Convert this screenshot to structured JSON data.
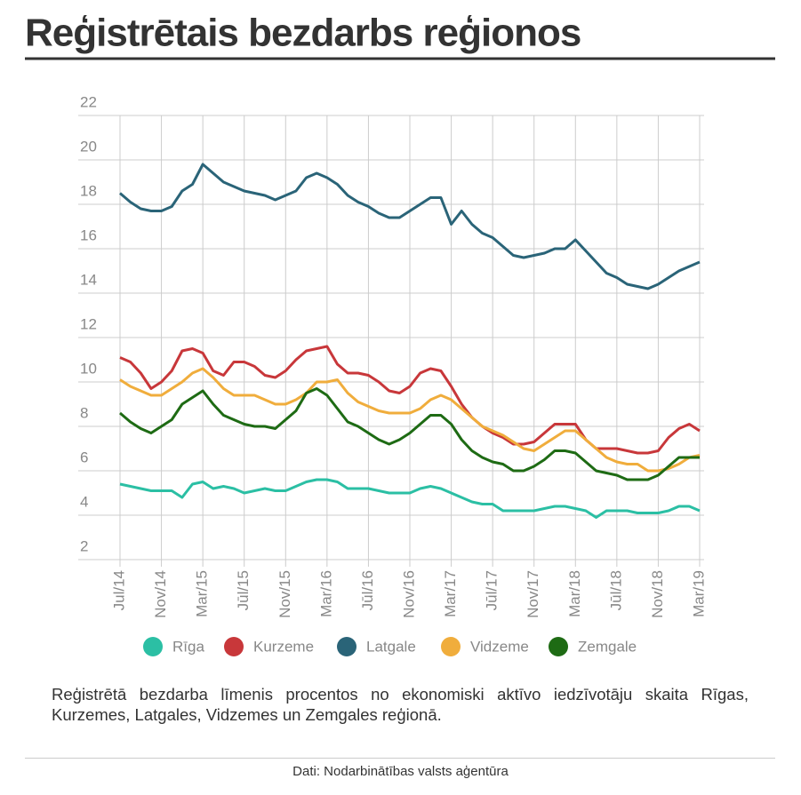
{
  "chart_data": {
    "type": "line",
    "title": "Reģistrētais bezdarbs reģionos",
    "categories": [
      "Jul/14",
      null,
      null,
      null,
      "Nov/14",
      null,
      null,
      null,
      "Mar/15",
      null,
      null,
      null,
      "Jūl/15",
      null,
      null,
      null,
      "Nov/15",
      null,
      null,
      null,
      "Mar/16",
      null,
      null,
      null,
      "Jūl/16",
      null,
      null,
      null,
      "Nov/16",
      null,
      null,
      null,
      "Mar/17",
      null,
      null,
      null,
      "Jūl/17",
      null,
      null,
      null,
      "Nov/17",
      null,
      null,
      null,
      "Mar/18",
      null,
      null,
      null,
      "Jūl/18",
      null,
      null,
      null,
      "Nov/18",
      null,
      null,
      null,
      "Mar/19"
    ],
    "ylim": [
      2,
      22
    ],
    "yticks": [
      2,
      4,
      6,
      8,
      10,
      12,
      14,
      16,
      18,
      20,
      22
    ],
    "grid": true,
    "series": [
      {
        "name": "Rīga",
        "color": "#2bbfa4",
        "values": [
          5.4,
          5.3,
          5.2,
          5.1,
          5.1,
          5.1,
          4.8,
          5.4,
          5.5,
          5.2,
          5.3,
          5.2,
          5.0,
          5.1,
          5.2,
          5.1,
          5.1,
          5.3,
          5.5,
          5.6,
          5.6,
          5.5,
          5.2,
          5.2,
          5.2,
          5.1,
          5.0,
          5.0,
          5.0,
          5.2,
          5.3,
          5.2,
          5.0,
          4.8,
          4.6,
          4.5,
          4.5,
          4.2,
          4.2,
          4.2,
          4.2,
          4.3,
          4.4,
          4.4,
          4.3,
          4.2,
          3.9,
          4.2,
          4.2,
          4.2,
          4.1,
          4.1,
          4.1,
          4.2,
          4.4,
          4.4,
          4.2
        ]
      },
      {
        "name": "Kurzeme",
        "color": "#c8373a",
        "values": [
          11.1,
          10.9,
          10.4,
          9.7,
          10.0,
          10.5,
          11.4,
          11.5,
          11.3,
          10.5,
          10.3,
          10.9,
          10.9,
          10.7,
          10.3,
          10.2,
          10.5,
          11.0,
          11.4,
          11.5,
          11.6,
          10.8,
          10.4,
          10.4,
          10.3,
          10.0,
          9.6,
          9.5,
          9.8,
          10.4,
          10.6,
          10.5,
          9.8,
          9.0,
          8.4,
          8.0,
          7.7,
          7.5,
          7.2,
          7.2,
          7.3,
          7.7,
          8.1,
          8.1,
          8.1,
          7.4,
          7.0,
          7.0,
          7.0,
          6.9,
          6.8,
          6.8,
          6.9,
          7.5,
          7.9,
          8.1,
          7.8
        ]
      },
      {
        "name": "Latgale",
        "color": "#2a6478",
        "values": [
          18.5,
          18.1,
          17.8,
          17.7,
          17.7,
          17.9,
          18.6,
          18.9,
          19.8,
          19.4,
          19.0,
          18.8,
          18.6,
          18.5,
          18.4,
          18.2,
          18.4,
          18.6,
          19.2,
          19.4,
          19.2,
          18.9,
          18.4,
          18.1,
          17.9,
          17.6,
          17.4,
          17.4,
          17.7,
          18.0,
          18.3,
          18.3,
          17.1,
          17.7,
          17.1,
          16.7,
          16.5,
          16.1,
          15.7,
          15.6,
          15.7,
          15.8,
          16.0,
          16.0,
          16.4,
          15.9,
          15.4,
          14.9,
          14.7,
          14.4,
          14.3,
          14.2,
          14.4,
          14.7,
          15.0,
          15.2,
          15.4
        ]
      },
      {
        "name": "Vidzeme",
        "color": "#f0ad3c",
        "values": [
          10.1,
          9.8,
          9.6,
          9.4,
          9.4,
          9.7,
          10.0,
          10.4,
          10.6,
          10.2,
          9.7,
          9.4,
          9.4,
          9.4,
          9.2,
          9.0,
          9.0,
          9.2,
          9.5,
          10.0,
          10.0,
          10.1,
          9.5,
          9.1,
          8.9,
          8.7,
          8.6,
          8.6,
          8.6,
          8.8,
          9.2,
          9.4,
          9.2,
          8.8,
          8.4,
          8.0,
          7.8,
          7.6,
          7.3,
          7.0,
          6.9,
          7.2,
          7.5,
          7.8,
          7.8,
          7.4,
          7.0,
          6.6,
          6.4,
          6.3,
          6.3,
          6.0,
          6.0,
          6.1,
          6.3,
          6.6,
          6.7
        ]
      },
      {
        "name": "Zemgale",
        "color": "#1e6b14",
        "values": [
          8.6,
          8.2,
          7.9,
          7.7,
          8.0,
          8.3,
          9.0,
          9.3,
          9.6,
          9.0,
          8.5,
          8.3,
          8.1,
          8.0,
          8.0,
          7.9,
          8.3,
          8.7,
          9.5,
          9.7,
          9.4,
          8.8,
          8.2,
          8.0,
          7.7,
          7.4,
          7.2,
          7.4,
          7.7,
          8.1,
          8.5,
          8.5,
          8.1,
          7.4,
          6.9,
          6.6,
          6.4,
          6.3,
          6.0,
          6.0,
          6.2,
          6.5,
          6.9,
          6.9,
          6.8,
          6.4,
          6.0,
          5.9,
          5.8,
          5.6,
          5.6,
          5.6,
          5.8,
          6.2,
          6.6,
          6.6,
          6.6
        ]
      }
    ],
    "caption": "Reģistrētā bezdarba līmenis procentos no ekonomiski aktīvo iedzīvotāju skaita Rīgas, Kurzemes, Latgales, Vidzemes un Zemgales reģionā.",
    "source": "Dati: Nodarbinātības valsts aģentūra"
  }
}
